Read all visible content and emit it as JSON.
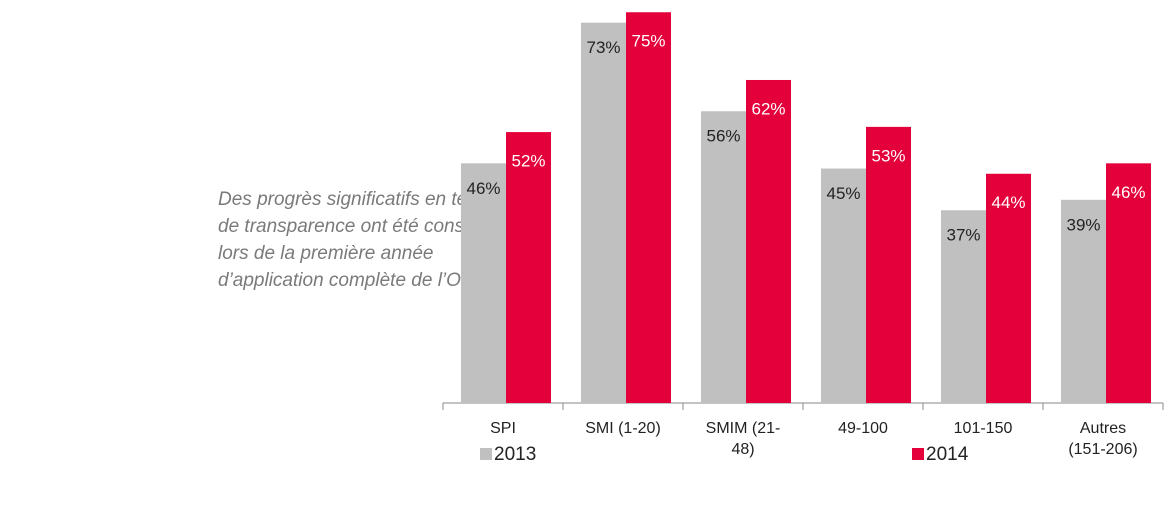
{
  "note": [
    "Des progrès significatifs en termes",
    "de transparence ont été constatés",
    "lors de la première année",
    "d’application complète de l’ORAb."
  ],
  "chart_data": {
    "type": "bar",
    "categories": [
      "SPI",
      "SMI (1-20)",
      "SMIM (21-48)",
      "49-100",
      "101-150",
      "Autres (151-206)"
    ],
    "series": [
      {
        "name": "2013",
        "color": "#c0c0c0",
        "values": [
          46,
          73,
          56,
          45,
          37,
          39
        ],
        "value_labels": [
          "46%",
          "73%",
          "56%",
          "45%",
          "37%",
          "39%"
        ]
      },
      {
        "name": "2014",
        "color": "#e4003a",
        "values": [
          52,
          75,
          62,
          53,
          44,
          46
        ],
        "value_labels": [
          "52%",
          "75%",
          "62%",
          "53%",
          "44%",
          "46%"
        ]
      }
    ]
  }
}
